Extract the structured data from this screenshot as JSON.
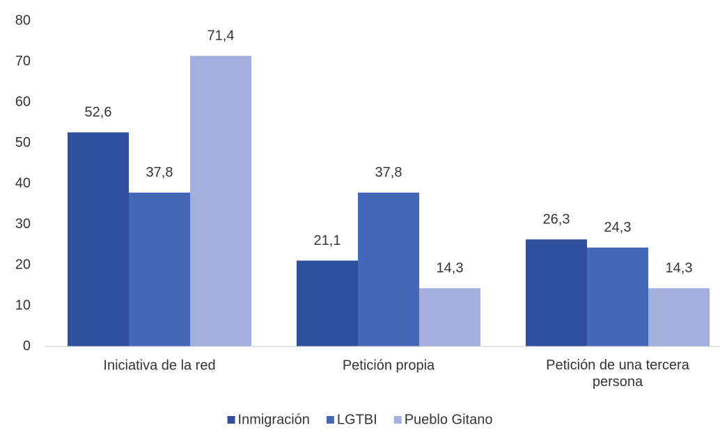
{
  "chart_data": {
    "type": "bar",
    "categories": [
      "Iniciativa de la red",
      "Petición propia",
      "Petición de una tercera persona"
    ],
    "series": [
      {
        "name": "Inmigración",
        "color": "#30509e",
        "values": [
          52.6,
          21.1,
          26.3
        ],
        "value_labels": [
          "52,6",
          "21,1",
          "26,3"
        ]
      },
      {
        "name": "LGTBI",
        "color": "#4468b8",
        "values": [
          37.8,
          37.8,
          24.3
        ],
        "value_labels": [
          "37,8",
          "37,8",
          "24,3"
        ]
      },
      {
        "name": "Pueblo Gitano",
        "color": "#a3b0de",
        "values": [
          71.4,
          14.3,
          14.3
        ],
        "value_labels": [
          "71,4",
          "14,3",
          "14,3"
        ]
      }
    ],
    "ylim": [
      0,
      80
    ],
    "yticks": [
      0,
      10,
      20,
      30,
      40,
      50,
      60,
      70,
      80
    ],
    "grid": false,
    "legend": "bottom"
  }
}
